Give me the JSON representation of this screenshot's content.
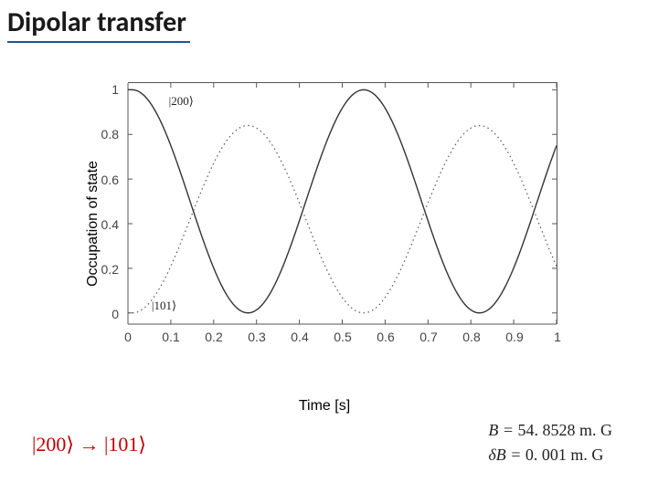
{
  "title": "Dipolar transfer",
  "chart": {
    "type": "line",
    "xlabel": "Time [s]",
    "ylabel": "Occupation of state",
    "xlim": [
      0,
      1
    ],
    "ylim": [
      -0.05,
      1.03
    ],
    "xticks": [
      0,
      0.1,
      0.2,
      0.3,
      0.4,
      0.5,
      0.6,
      0.7,
      0.8,
      0.9,
      1
    ],
    "xtick_labels": [
      "0",
      "0.1",
      "0.2",
      "0.3",
      "0.4",
      "0.5",
      "0.6",
      "0.7",
      "0.8",
      "0.9",
      "1"
    ],
    "yticks": [
      0,
      0.2,
      0.4,
      0.6,
      0.8,
      1
    ],
    "ytick_labels": [
      "0",
      "0.2",
      "0.4",
      "0.6",
      "0.8",
      "1"
    ],
    "background_color": "#ffffff",
    "axis_color": "#555555",
    "tick_fontsize": 14,
    "label_fontsize": 16,
    "series": [
      {
        "name": "200",
        "label": "|200⟩",
        "label_pos_x": 0.095,
        "label_pos_y": 0.95,
        "color": "#333333",
        "style": "solid",
        "linewidth": 1.4,
        "amplitude": 0.5,
        "offset": 0.5,
        "phase_start": 1.0,
        "phase_end_value": 0.5,
        "period_s": 0.54,
        "t_start_offset": 0.01
      },
      {
        "name": "101",
        "label": "|101⟩",
        "label_pos_x": 0.055,
        "label_pos_y": 0.035,
        "color": "#555555",
        "style": "dotted",
        "linewidth": 1.2,
        "max_value": 0.84,
        "amplitude": 0.42,
        "offset": 0.42,
        "phase_start": 0.0,
        "period_s": 0.54,
        "t_start_offset": 0.01
      }
    ]
  },
  "equations": {
    "transition": "|200⟩ → |101⟩",
    "B_label": "B = ",
    "B_value": "54. 8528 m. G",
    "dB_label": "δB = ",
    "dB_value": "0. 001 m. G"
  },
  "colors": {
    "title_underline": "#2050a0",
    "equation_red": "#c00000",
    "text": "#222222"
  }
}
